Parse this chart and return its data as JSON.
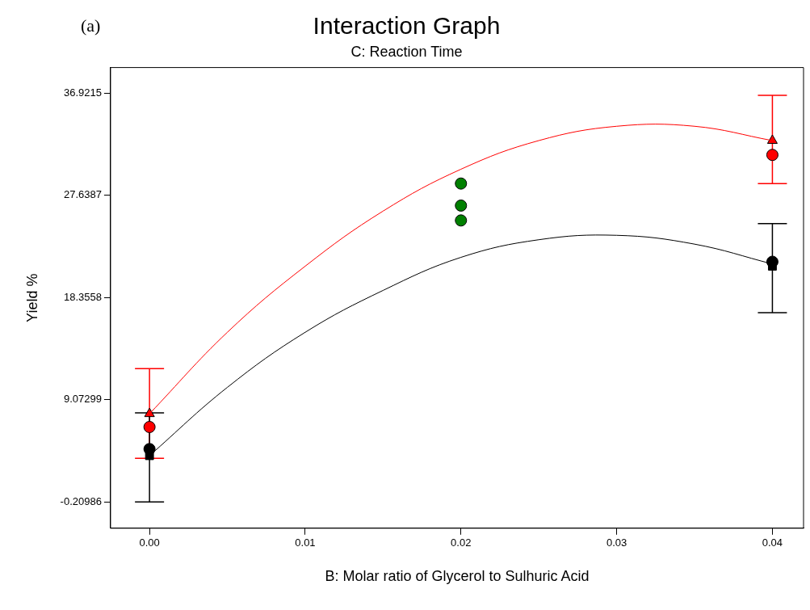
{
  "chart_data": {
    "type": "line",
    "title": "Interaction Graph",
    "subtitle": "C: Reaction Time",
    "xlabel": "B: Molar ratio of Glycerol to Sulhuric Acid",
    "ylabel": "Yield %",
    "annotations": [
      "(a)"
    ],
    "xlim": [
      -0.0025,
      0.042
    ],
    "xticks": [
      {
        "value": 0,
        "label": "0.00"
      },
      {
        "value": 0.01,
        "label": "0.01"
      },
      {
        "value": 0.02,
        "label": "0.02"
      },
      {
        "value": 0.03,
        "label": "0.03"
      },
      {
        "value": 0.04,
        "label": "0.04"
      }
    ],
    "ylim": [
      -2.59,
      39.23
    ],
    "yticks": [
      -0.20986,
      9.07299,
      18.3558,
      27.6387,
      36.9215
    ],
    "grid": false,
    "legend": false,
    "series": [
      {
        "color": "#ff0000",
        "marker": "none",
        "x": [
          0,
          0.005,
          0.01,
          0.015,
          0.02,
          0.025,
          0.03,
          0.035,
          0.04
        ],
        "values": [
          7.8,
          15.2,
          21.2,
          26.2,
          30.0,
          32.6,
          33.9,
          33.9,
          32.6
        ]
      },
      {
        "color": "#000000",
        "marker": "none",
        "x": [
          0,
          0.005,
          0.01,
          0.015,
          0.02,
          0.025,
          0.03,
          0.035,
          0.04
        ],
        "values": [
          4.0,
          10.2,
          15.2,
          19.0,
          22.0,
          23.6,
          24.0,
          23.2,
          21.4
        ]
      },
      {
        "type": "scatter",
        "color": "#ff0000",
        "marker": "triangle",
        "x": [
          0,
          0.04
        ],
        "values": [
          7.8,
          32.6
        ],
        "errors": [
          [
            3.76,
            11.9
          ],
          [
            28.7,
            36.7
          ]
        ]
      },
      {
        "type": "scatter",
        "color": "#000000",
        "marker": "square",
        "x": [
          0,
          0.04
        ],
        "values": [
          4.0,
          21.2
        ],
        "errors": [
          [
            -0.21,
            7.88
          ],
          [
            16.97,
            25.06
          ]
        ]
      },
      {
        "type": "scatter",
        "color": "#ff0000",
        "marker": "circle",
        "x": [
          0,
          0.04
        ],
        "values": [
          6.6,
          31.3
        ]
      },
      {
        "type": "scatter",
        "color": "#000000",
        "marker": "circle",
        "x": [
          0,
          0.04
        ],
        "values": [
          4.6,
          21.6
        ]
      },
      {
        "type": "scatter",
        "color": "#008000",
        "marker": "circle",
        "x": [
          0.02,
          0.02,
          0.02
        ],
        "values": [
          28.7,
          26.7,
          25.35
        ]
      }
    ]
  }
}
